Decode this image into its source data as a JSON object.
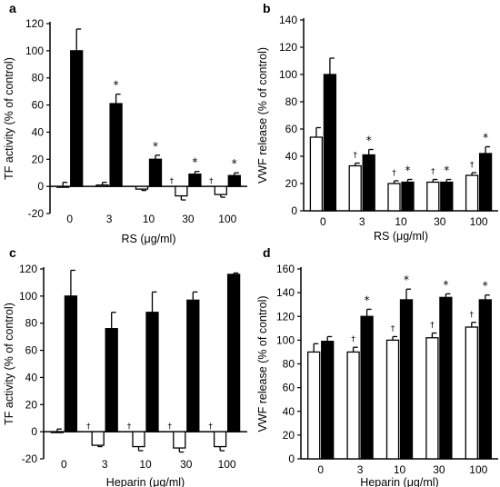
{
  "colors": {
    "open_bar": "#ffffff",
    "filled_bar": "#000000",
    "axis": "#000000"
  },
  "chart_data": [
    {
      "panel": "a",
      "type": "bar",
      "categories": [
        "0",
        "3",
        "10",
        "30",
        "100"
      ],
      "xlabel": "RS (μg/ml)",
      "ylabel": "TF activity (% of control)",
      "ylim": [
        -20,
        120
      ],
      "yticks": [
        -20,
        0,
        20,
        40,
        60,
        80,
        100,
        120
      ],
      "series": [
        {
          "fill": "open",
          "values": [
            0,
            1,
            -2,
            -7,
            -6
          ],
          "errors": [
            3,
            2,
            1,
            3,
            2
          ],
          "markers": [
            "",
            "",
            "",
            "†",
            "†"
          ]
        },
        {
          "fill": "filled",
          "values": [
            100,
            61,
            20,
            9,
            8
          ],
          "errors": [
            16,
            7,
            3,
            2,
            2
          ],
          "markers": [
            "",
            "*",
            "*",
            "*",
            "*"
          ]
        }
      ]
    },
    {
      "panel": "b",
      "type": "bar",
      "categories": [
        "0",
        "3",
        "10",
        "30",
        "100"
      ],
      "xlabel": "RS (μg/ml)",
      "ylabel": "VWF release (% of control)",
      "ylim": [
        0,
        140
      ],
      "yticks": [
        0,
        20,
        40,
        60,
        80,
        100,
        120,
        140
      ],
      "series": [
        {
          "fill": "open",
          "values": [
            54,
            33,
            20,
            21,
            26
          ],
          "errors": [
            7,
            2,
            2,
            2,
            2
          ],
          "markers": [
            "",
            "†",
            "†",
            "†",
            "†"
          ]
        },
        {
          "fill": "filled",
          "values": [
            100,
            41,
            21,
            21,
            42
          ],
          "errors": [
            12,
            4,
            2,
            2,
            5
          ],
          "markers": [
            "",
            "*",
            "*",
            "*",
            "*"
          ]
        }
      ]
    },
    {
      "panel": "c",
      "type": "bar",
      "categories": [
        "0",
        "3",
        "10",
        "30",
        "100"
      ],
      "xlabel": "Heparin (μg/ml)",
      "ylabel": "TF activity (% of control)",
      "ylim": [
        -20,
        120
      ],
      "yticks": [
        -20,
        0,
        20,
        40,
        60,
        80,
        100,
        120
      ],
      "series": [
        {
          "fill": "open",
          "values": [
            0,
            -10,
            -11,
            -12,
            -11
          ],
          "errors": [
            2,
            1,
            3,
            3,
            3
          ],
          "markers": [
            "",
            "†",
            "†",
            "†",
            "†"
          ]
        },
        {
          "fill": "filled",
          "values": [
            100,
            76,
            88,
            97,
            116
          ],
          "errors": [
            19,
            12,
            15,
            6,
            1
          ],
          "markers": [
            "",
            "",
            "",
            "",
            ""
          ]
        }
      ]
    },
    {
      "panel": "d",
      "type": "bar",
      "categories": [
        "0",
        "3",
        "10",
        "30",
        "100"
      ],
      "xlabel": "Heparin (μg/ml)",
      "ylabel": "VWF release (% of control)",
      "ylim": [
        0,
        160
      ],
      "yticks": [
        0,
        20,
        40,
        60,
        80,
        100,
        120,
        140,
        160
      ],
      "series": [
        {
          "fill": "open",
          "values": [
            90,
            90,
            100,
            102,
            111
          ],
          "errors": [
            7,
            4,
            3,
            4,
            4
          ],
          "markers": [
            "",
            "†",
            "†",
            "†",
            "†"
          ]
        },
        {
          "fill": "filled",
          "values": [
            99,
            120,
            134,
            136,
            134
          ],
          "errors": [
            4,
            6,
            9,
            3,
            4
          ],
          "markers": [
            "",
            "*",
            "*",
            "*",
            "*"
          ]
        }
      ]
    }
  ]
}
